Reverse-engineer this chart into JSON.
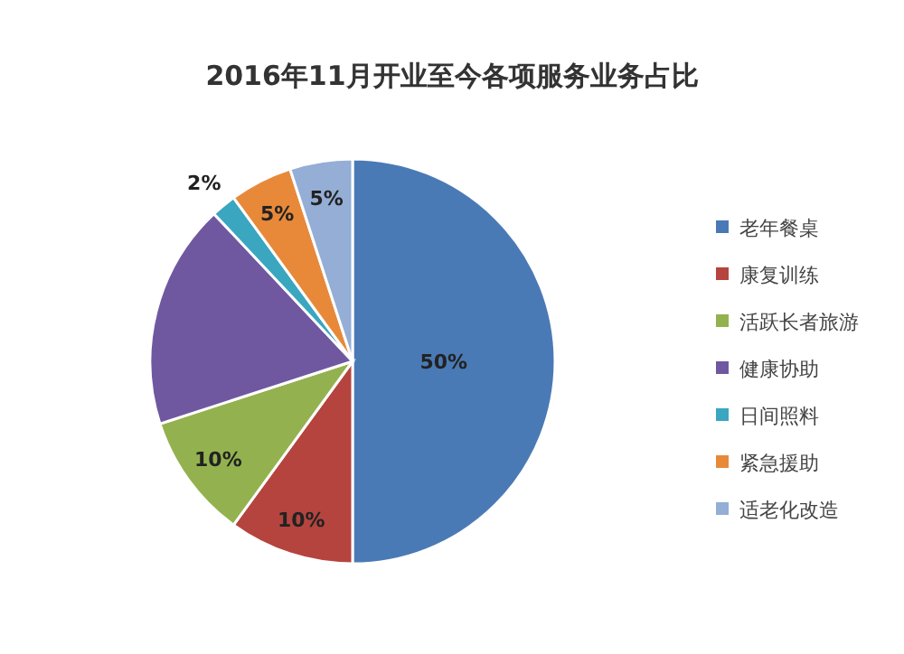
{
  "chart_data": {
    "type": "pie",
    "title": "2016年11月开业至今各项服务业务占比",
    "categories": [
      "老年餐桌",
      "康复训练",
      "活跃长者旅游",
      "健康协助",
      "日间照料",
      "紧急援助",
      "适老化改造"
    ],
    "values": [
      50,
      10,
      10,
      18,
      2,
      5,
      5
    ],
    "value_labels": [
      "50%",
      "10%",
      "10%",
      null,
      "2%",
      "5%",
      "5%"
    ],
    "colors": [
      "#4a7ab5",
      "#b5443f",
      "#93b24f",
      "#7058a0",
      "#3aa6c0",
      "#e8893a",
      "#94aed6"
    ],
    "legend": "right"
  }
}
